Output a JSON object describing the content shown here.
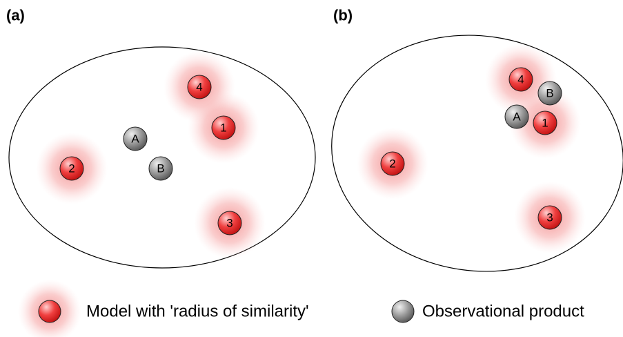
{
  "panels": [
    {
      "label": "(a)",
      "nodes": [
        {
          "label": "4"
        },
        {
          "label": "1"
        },
        {
          "label": "2"
        },
        {
          "label": "3"
        },
        {
          "label": "A"
        },
        {
          "label": "B"
        }
      ]
    },
    {
      "label": "(b)",
      "nodes": [
        {
          "label": "4"
        },
        {
          "label": "B"
        },
        {
          "label": "A"
        },
        {
          "label": "1"
        },
        {
          "label": "2"
        },
        {
          "label": "3"
        }
      ]
    }
  ],
  "legend": [
    {
      "label": "Model with 'radius of similarity'"
    },
    {
      "label": "Observational product"
    }
  ]
}
